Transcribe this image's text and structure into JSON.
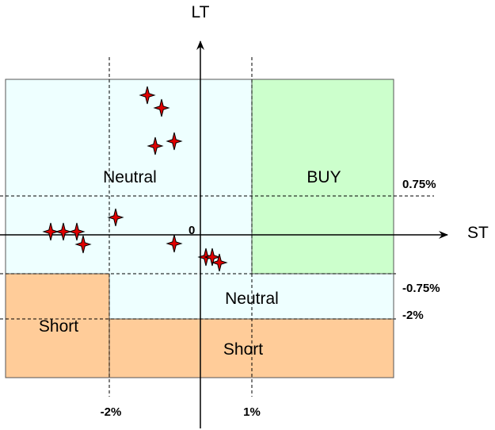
{
  "axes": {
    "y_label": "LT",
    "x_label": "ST",
    "origin": "0"
  },
  "zones": {
    "neutral_upper": "Neutral",
    "buy": "BUY",
    "neutral_lower": "Neutral",
    "short_left": "Short",
    "short_bottom": "Short"
  },
  "thresholds": {
    "lt_upper": "0.75%",
    "lt_lower": "-0.75%",
    "lt_short": "-2%",
    "st_left": "-2%",
    "st_right": "1%"
  }
}
